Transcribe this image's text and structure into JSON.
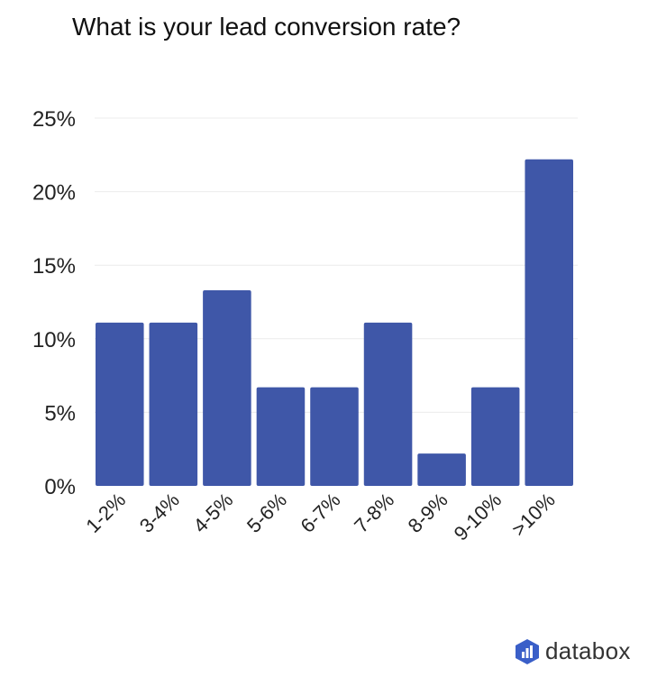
{
  "chart_data": {
    "type": "bar",
    "title": "What is your lead conversion rate?",
    "categories": [
      "1-2%",
      "3-4%",
      "4-5%",
      "5-6%",
      "6-7%",
      "7-8%",
      "8-9%",
      "9-10%",
      ">10%"
    ],
    "values": [
      11.1,
      11.1,
      13.3,
      6.7,
      6.7,
      11.1,
      2.2,
      6.7,
      22.2
    ],
    "ylim": [
      0,
      25
    ],
    "yticks": [
      0,
      5,
      10,
      15,
      20,
      25
    ],
    "ytick_labels": [
      "0%",
      "5%",
      "10%",
      "15%",
      "20%",
      "25%"
    ],
    "xlabel": "",
    "ylabel": "",
    "grid": true,
    "bar_color": "#3f57a8"
  },
  "branding": {
    "logo_text": "databox",
    "logo_color": "#3a5fc8",
    "logo_icon": "bar-chart-hexagon-icon"
  }
}
